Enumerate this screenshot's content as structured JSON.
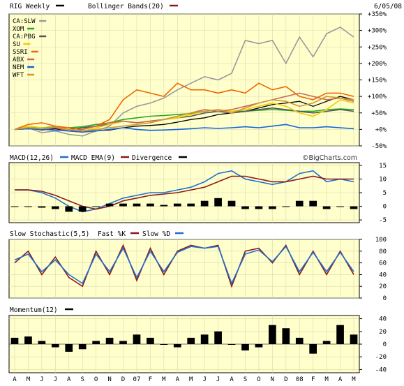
{
  "header": {
    "title": "RIG Weekly",
    "overlay": "Bollinger Bands(20)",
    "date": "6/05/08"
  },
  "watermark": "©BigCharts.com",
  "colors": {
    "background": "#ffffcc",
    "grid": "#d8d8b0",
    "price": "#000000",
    "bollinger": "#8b1a1a",
    "macd": "#1f6fd0",
    "macd_ema": "#8b1a1a",
    "fast_k": "#8b1a1a",
    "slow_d": "#1f6fd0"
  },
  "x_labels": [
    "A",
    "M",
    "J",
    "J",
    "A",
    "S",
    "O",
    "N",
    "D",
    "07",
    "F",
    "M",
    "A",
    "M",
    "J",
    "J",
    "A",
    "S",
    "O",
    "N",
    "D",
    "08",
    "F",
    "M",
    "A",
    "M"
  ],
  "chart_data": [
    {
      "type": "line",
      "title": "RIG Weekly",
      "overlay": "Bollinger Bands(20)",
      "y_axis_ticks": [
        "+350%",
        "+300%",
        "+250%",
        "+200%",
        "+150%",
        "+100%",
        "+50%",
        "+0%",
        "-50%"
      ],
      "ylim": [
        -50,
        350
      ],
      "categories": [
        "A",
        "M",
        "J",
        "J",
        "A",
        "S",
        "O",
        "N",
        "D",
        "07",
        "F",
        "M",
        "A",
        "M",
        "J",
        "J",
        "A",
        "S",
        "O",
        "N",
        "D",
        "08",
        "F",
        "M",
        "A",
        "M"
      ],
      "series": [
        {
          "name": "RIG Weekly",
          "color": "#000000",
          "values": [
            0,
            5,
            -2,
            2,
            -5,
            -8,
            -4,
            -2,
            5,
            10,
            12,
            15,
            22,
            30,
            35,
            45,
            50,
            55,
            65,
            75,
            80,
            85,
            70,
            85,
            100,
            90
          ]
        },
        {
          "name": "CA:SLW",
          "color": "#999999",
          "values": [
            0,
            5,
            -10,
            -5,
            -15,
            -20,
            -5,
            10,
            50,
            70,
            80,
            95,
            120,
            140,
            160,
            150,
            170,
            270,
            260,
            270,
            200,
            280,
            220,
            290,
            310,
            280
          ]
        },
        {
          "name": "XOM",
          "color": "#22aa22",
          "values": [
            0,
            5,
            5,
            8,
            5,
            8,
            15,
            20,
            30,
            35,
            40,
            42,
            45,
            48,
            55,
            60,
            55,
            55,
            58,
            60,
            58,
            55,
            55,
            60,
            62,
            60
          ]
        },
        {
          "name": "CA:PBG",
          "color": "#555555",
          "values": [
            0,
            2,
            0,
            5,
            0,
            5,
            10,
            15,
            25,
            20,
            25,
            30,
            35,
            40,
            50,
            55,
            50,
            55,
            60,
            65,
            60,
            55,
            50,
            55,
            60,
            55
          ]
        },
        {
          "name": "SU",
          "color": "#eecc00",
          "values": [
            0,
            10,
            5,
            5,
            0,
            -5,
            5,
            15,
            25,
            20,
            25,
            30,
            35,
            45,
            55,
            60,
            55,
            60,
            70,
            80,
            70,
            50,
            40,
            60,
            90,
            80
          ]
        },
        {
          "name": "SSRI",
          "color": "#ee6600",
          "values": [
            0,
            15,
            20,
            10,
            5,
            0,
            10,
            30,
            90,
            120,
            110,
            100,
            140,
            120,
            120,
            110,
            120,
            110,
            140,
            120,
            130,
            100,
            90,
            110,
            110,
            100
          ]
        },
        {
          "name": "ABX",
          "color": "#cc6655",
          "values": [
            0,
            5,
            0,
            5,
            -5,
            0,
            10,
            20,
            25,
            20,
            25,
            30,
            40,
            50,
            60,
            55,
            60,
            70,
            80,
            90,
            100,
            110,
            100,
            90,
            95,
            85
          ]
        },
        {
          "name": "NEM",
          "color": "#1166dd",
          "values": [
            0,
            2,
            0,
            -2,
            -5,
            -8,
            -5,
            0,
            5,
            0,
            -3,
            -2,
            0,
            2,
            5,
            3,
            5,
            8,
            5,
            10,
            15,
            5,
            5,
            8,
            5,
            2
          ]
        },
        {
          "name": "WFT",
          "color": "#cc9933",
          "values": [
            0,
            5,
            2,
            8,
            0,
            -5,
            0,
            5,
            10,
            15,
            20,
            30,
            40,
            50,
            55,
            60,
            50,
            65,
            80,
            90,
            85,
            70,
            80,
            100,
            95,
            90
          ]
        }
      ]
    },
    {
      "type": "line",
      "title": "MACD(12,26)",
      "legend": [
        "MACD(12,26)",
        "MACD EMA(9)",
        "Divergence"
      ],
      "y_axis_ticks": [
        "15",
        "10",
        "5",
        "0",
        "-5"
      ],
      "ylim": [
        -6,
        16
      ],
      "categories": [
        "A",
        "M",
        "J",
        "J",
        "A",
        "S",
        "O",
        "N",
        "D",
        "07",
        "F",
        "M",
        "A",
        "M",
        "J",
        "J",
        "A",
        "S",
        "O",
        "N",
        "D",
        "08",
        "F",
        "M",
        "A",
        "M"
      ],
      "series": [
        {
          "name": "MACD(12,26)",
          "color": "#1f6fd0",
          "values": [
            6,
            6,
            5,
            3,
            0,
            -2,
            -1,
            1,
            3,
            4,
            5,
            5,
            6,
            7,
            9,
            12,
            13,
            10,
            9,
            8,
            9,
            12,
            13,
            9,
            10,
            9
          ]
        },
        {
          "name": "MACD EMA(9)",
          "color": "#8b1a1a",
          "values": [
            6,
            6,
            5.5,
            4,
            2,
            0,
            -1,
            0,
            2,
            3,
            4,
            4.5,
            5,
            6,
            7,
            9,
            11,
            11,
            10,
            9,
            9,
            10,
            11,
            10,
            10,
            10
          ]
        },
        {
          "name": "Divergence",
          "color": "#000000",
          "values": [
            0,
            0,
            -0.5,
            -1,
            -2,
            -2,
            0,
            1,
            1,
            1,
            1,
            0.5,
            1,
            1,
            2,
            3,
            2,
            -1,
            -1,
            -1,
            0,
            2,
            2,
            -1,
            0,
            -1
          ]
        }
      ]
    },
    {
      "type": "line",
      "title": "Slow Stochastic(5,5)",
      "legend": [
        "Slow Stochastic(5,5)",
        "Fast %K",
        "Slow %D"
      ],
      "y_axis_ticks": [
        "100",
        "80",
        "60",
        "40",
        "20",
        "0"
      ],
      "ylim": [
        0,
        100
      ],
      "categories": [
        "A",
        "M",
        "J",
        "J",
        "A",
        "S",
        "O",
        "N",
        "D",
        "07",
        "F",
        "M",
        "A",
        "M",
        "J",
        "J",
        "A",
        "S",
        "O",
        "N",
        "D",
        "08",
        "F",
        "M",
        "A",
        "M"
      ],
      "series": [
        {
          "name": "Fast %K",
          "color": "#8b1a1a",
          "values": [
            60,
            80,
            40,
            70,
            35,
            20,
            80,
            40,
            90,
            30,
            85,
            40,
            80,
            90,
            85,
            90,
            20,
            80,
            85,
            60,
            90,
            40,
            80,
            40,
            80,
            40
          ]
        },
        {
          "name": "Slow %D",
          "color": "#1f6fd0",
          "values": [
            65,
            75,
            45,
            65,
            40,
            25,
            75,
            45,
            85,
            35,
            80,
            45,
            78,
            88,
            85,
            88,
            25,
            75,
            82,
            62,
            88,
            45,
            78,
            45,
            78,
            45
          ]
        }
      ]
    },
    {
      "type": "bar",
      "title": "Momentum(12)",
      "y_axis_ticks": [
        "40",
        "20",
        "0",
        "-20",
        "-40"
      ],
      "ylim": [
        -45,
        45
      ],
      "categories": [
        "A",
        "M",
        "J",
        "J",
        "A",
        "S",
        "O",
        "N",
        "D",
        "07",
        "F",
        "M",
        "A",
        "M",
        "J",
        "J",
        "A",
        "S",
        "O",
        "N",
        "D",
        "08",
        "F",
        "M",
        "A",
        "M"
      ],
      "series": [
        {
          "name": "Momentum(12)",
          "color": "#000000",
          "values": [
            10,
            12,
            5,
            -5,
            -12,
            -8,
            5,
            10,
            5,
            15,
            10,
            0,
            -5,
            10,
            15,
            20,
            0,
            -10,
            -5,
            30,
            25,
            10,
            -15,
            5,
            30,
            15
          ]
        }
      ]
    }
  ]
}
